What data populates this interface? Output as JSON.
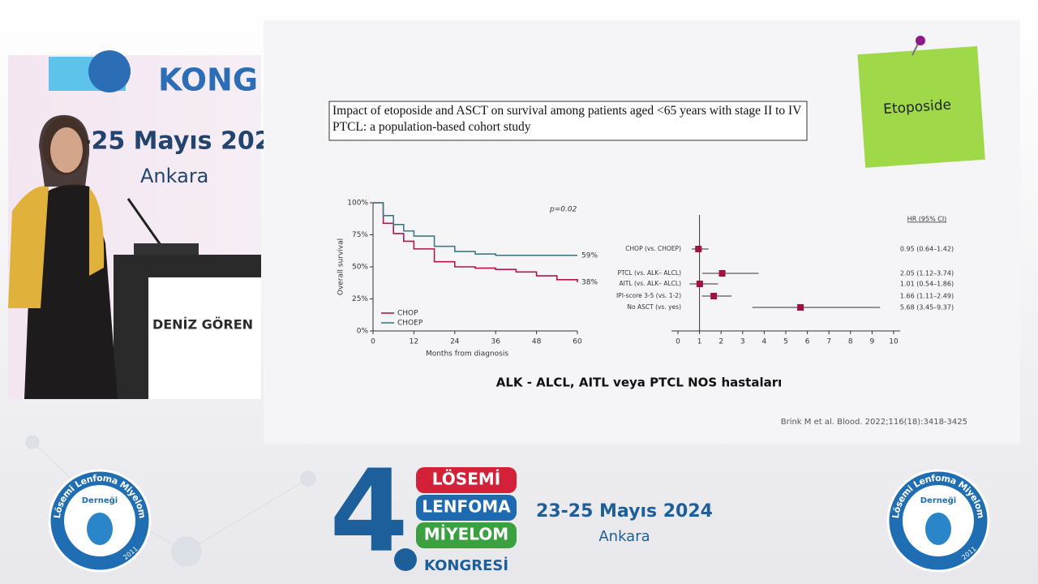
{
  "backdrop": {
    "title_fragment": "KONG",
    "date_fragment": "-25 Mayıs 202",
    "city": "Ankara",
    "speaker_name": "DENİZ GÖREN"
  },
  "slide": {
    "title": "Impact of etoposide and ASCT on survival among patients aged <65 years with stage II to IV PTCL: a population-based cohort study",
    "sticky_note": "Etoposide",
    "subtitle": "ALK - ALCL, AITL veya PTCL NOS hastaları",
    "citation": "Brink M et al. Blood. 2022;116(18):3418-3425",
    "km_chart": {
      "type": "line",
      "ylabel": "Overall survival",
      "xlabel": "Months from diagnosis",
      "annotation": "p=0.02",
      "x": [
        0,
        3,
        6,
        9,
        12,
        18,
        24,
        30,
        36,
        42,
        48,
        54,
        60
      ],
      "series": [
        {
          "name": "CHOP",
          "color": "#b0174a",
          "values": [
            100,
            84,
            76,
            70,
            64,
            54,
            50,
            49,
            48,
            46,
            43,
            40,
            38
          ],
          "end_label": "38%"
        },
        {
          "name": "CHOEP",
          "color": "#3e7b84",
          "values": [
            100,
            90,
            83,
            78,
            74,
            66,
            62,
            60,
            59,
            59,
            59,
            59,
            59
          ],
          "end_label": "59%"
        }
      ],
      "xlim": [
        0,
        60
      ],
      "xticks": [
        0,
        12,
        24,
        36,
        48,
        60
      ],
      "ylim": [
        0,
        100
      ],
      "yticks": [
        {
          "value": 0,
          "label": "0%"
        },
        {
          "value": 25,
          "label": "25%"
        },
        {
          "value": 50,
          "label": "50%"
        },
        {
          "value": 75,
          "label": "75%"
        },
        {
          "value": 100,
          "label": "100%"
        }
      ]
    },
    "forest_plot": {
      "type": "forest",
      "header": "HR (95% CI)",
      "color": "#a3123f",
      "reference": 1,
      "rows": [
        {
          "label": "CHOP (vs. CHOEP)",
          "hr": 0.95,
          "lo": 0.64,
          "hi": 1.42,
          "text": "0.95 (0.64–1.42)"
        },
        {
          "label": "PTCL (vs. ALK– ALCL)",
          "hr": 2.05,
          "lo": 1.12,
          "hi": 3.74,
          "text": "2.05 (1.12–3.74)"
        },
        {
          "label": "AITL (vs. ALK– ALCL)",
          "hr": 1.01,
          "lo": 0.54,
          "hi": 1.86,
          "text": "1.01 (0.54–1.86)"
        },
        {
          "label": "IPI-score 3-5 (vs. 1-2)",
          "hr": 1.66,
          "lo": 1.11,
          "hi": 2.49,
          "text": "1.66 (1.11–2.49)"
        },
        {
          "label": "No ASCT (vs. yes)",
          "hr": 5.68,
          "lo": 3.45,
          "hi": 9.37,
          "text": "5.68 (3.45–9.37)"
        }
      ],
      "xlim": [
        0,
        10
      ],
      "xticks": [
        0,
        1,
        2,
        3,
        4,
        5,
        6,
        7,
        8,
        9,
        10
      ]
    }
  },
  "banner": {
    "number": "4",
    "words": [
      "LÖSEMİ",
      "LENFOMA",
      "MİYELOM",
      "KONGRESİ"
    ],
    "dates": "23-25 Mayıs 2024",
    "city": "Ankara"
  },
  "logo": {
    "text": "Lösemi Lenfoma Miyelom",
    "sub": "Derneği",
    "year": "2011"
  }
}
